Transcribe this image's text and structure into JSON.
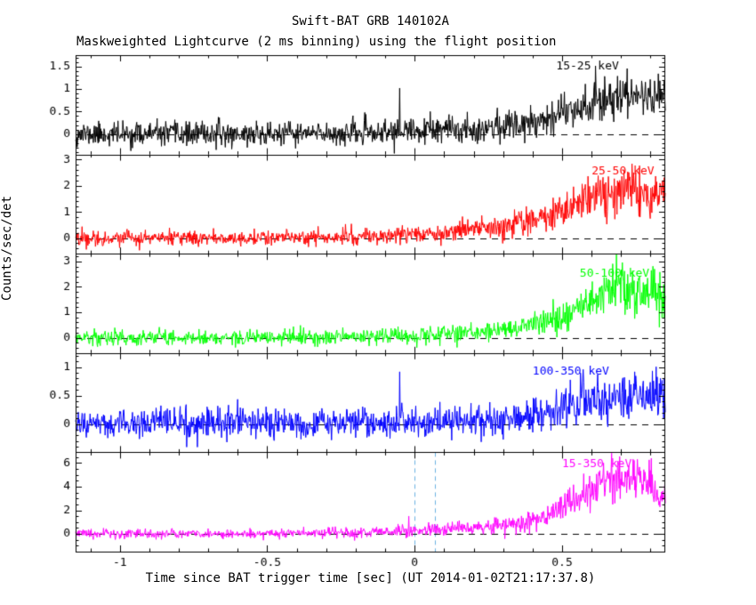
{
  "figure": {
    "title": "Swift-BAT GRB 140102A",
    "subtitle": "Maskweighted Lightcurve (2 ms binning) using the flight position",
    "xlabel": "Time since BAT trigger time [sec] (UT 2014-01-02T21:17:37.8)",
    "ylabel": "Counts/sec/det"
  },
  "chart_data": {
    "type": "line",
    "xlim": [
      -1.15,
      0.85
    ],
    "xticks": [
      -1,
      -0.5,
      0,
      0.5
    ],
    "xminor": 0.1,
    "zero_line": {
      "y": 0,
      "style": "dashed",
      "color": "#000000"
    },
    "vline_color": "#6ab0e0",
    "panels": [
      {
        "band": "15-25 keV",
        "color": "#000000",
        "ylim": [
          -0.45,
          1.75
        ],
        "yticks": [
          0,
          0.5,
          1,
          1.5
        ],
        "yminor": 0.1,
        "seed": 11,
        "envelope": [
          [
            -1.15,
            0,
            0.13
          ],
          [
            -0.5,
            0,
            0.13
          ],
          [
            -0.2,
            0.02,
            0.13
          ],
          [
            0,
            0.06,
            0.14
          ],
          [
            0.2,
            0.12,
            0.15
          ],
          [
            0.35,
            0.22,
            0.17
          ],
          [
            0.45,
            0.38,
            0.19
          ],
          [
            0.55,
            0.6,
            0.23
          ],
          [
            0.65,
            0.8,
            0.26
          ],
          [
            0.75,
            0.88,
            0.26
          ],
          [
            0.85,
            0.82,
            0.25
          ]
        ],
        "spikes": [
          [
            -0.05,
            1.02
          ]
        ],
        "label_pos": [
          0.48,
          1.5
        ]
      },
      {
        "band": "25-50 keV",
        "color": "#ff0000",
        "ylim": [
          -0.6,
          3.2
        ],
        "yticks": [
          0,
          1,
          2,
          3
        ],
        "yminor": 0.2,
        "seed": 22,
        "envelope": [
          [
            -1.15,
            0,
            0.14
          ],
          [
            -0.5,
            0,
            0.14
          ],
          [
            -0.2,
            0.05,
            0.15
          ],
          [
            0,
            0.15,
            0.17
          ],
          [
            0.15,
            0.28,
            0.19
          ],
          [
            0.3,
            0.42,
            0.22
          ],
          [
            0.45,
            0.8,
            0.3
          ],
          [
            0.55,
            1.3,
            0.38
          ],
          [
            0.65,
            1.75,
            0.45
          ],
          [
            0.75,
            1.85,
            0.45
          ],
          [
            0.85,
            1.5,
            0.42
          ]
        ],
        "spikes": [],
        "label_pos": [
          0.6,
          2.55
        ]
      },
      {
        "band": "50-100 keV",
        "color": "#00ff00",
        "ylim": [
          -0.6,
          3.3
        ],
        "yticks": [
          0,
          1,
          2,
          3
        ],
        "yminor": 0.2,
        "seed": 33,
        "envelope": [
          [
            -1.15,
            0,
            0.15
          ],
          [
            -0.5,
            0,
            0.15
          ],
          [
            -0.2,
            0.03,
            0.15
          ],
          [
            0,
            0.1,
            0.16
          ],
          [
            0.2,
            0.2,
            0.18
          ],
          [
            0.35,
            0.35,
            0.2
          ],
          [
            0.5,
            0.75,
            0.28
          ],
          [
            0.6,
            1.5,
            0.42
          ],
          [
            0.68,
            2.0,
            0.5
          ],
          [
            0.78,
            1.9,
            0.48
          ],
          [
            0.85,
            1.55,
            0.45
          ]
        ],
        "spikes": [],
        "label_pos": [
          0.56,
          2.5
        ]
      },
      {
        "band": "100-350 keV",
        "color": "#0000ff",
        "ylim": [
          -0.5,
          1.25
        ],
        "yticks": [
          0,
          0.5,
          1
        ],
        "yminor": 0.1,
        "seed": 44,
        "envelope": [
          [
            -1.15,
            0,
            0.13
          ],
          [
            0,
            0.02,
            0.13
          ],
          [
            0.2,
            0.05,
            0.13
          ],
          [
            0.35,
            0.1,
            0.14
          ],
          [
            0.45,
            0.2,
            0.17
          ],
          [
            0.55,
            0.35,
            0.2
          ],
          [
            0.65,
            0.45,
            0.22
          ],
          [
            0.75,
            0.48,
            0.22
          ],
          [
            0.85,
            0.45,
            0.22
          ]
        ],
        "spikes": [
          [
            -0.05,
            0.92
          ]
        ],
        "label_pos": [
          0.4,
          0.92
        ]
      },
      {
        "band": "15-350 keV",
        "color": "#ff00ff",
        "ylim": [
          -1.5,
          6.9
        ],
        "yticks": [
          0,
          2,
          4,
          6
        ],
        "yminor": 0.5,
        "seed": 55,
        "envelope": [
          [
            -1.15,
            0,
            0.2
          ],
          [
            -0.5,
            0.02,
            0.2
          ],
          [
            -0.2,
            0.1,
            0.22
          ],
          [
            0,
            0.25,
            0.25
          ],
          [
            0.15,
            0.45,
            0.3
          ],
          [
            0.3,
            0.7,
            0.35
          ],
          [
            0.4,
            1.1,
            0.45
          ],
          [
            0.5,
            2.2,
            0.6
          ],
          [
            0.6,
            3.8,
            0.8
          ],
          [
            0.68,
            4.7,
            0.9
          ],
          [
            0.78,
            4.3,
            0.85
          ],
          [
            0.85,
            3.3,
            0.75
          ]
        ],
        "spikes": [
          [
            -0.02,
            1.5
          ]
        ],
        "vlines": [
          0.0,
          0.068
        ],
        "label_pos": [
          0.5,
          5.9
        ]
      }
    ]
  }
}
